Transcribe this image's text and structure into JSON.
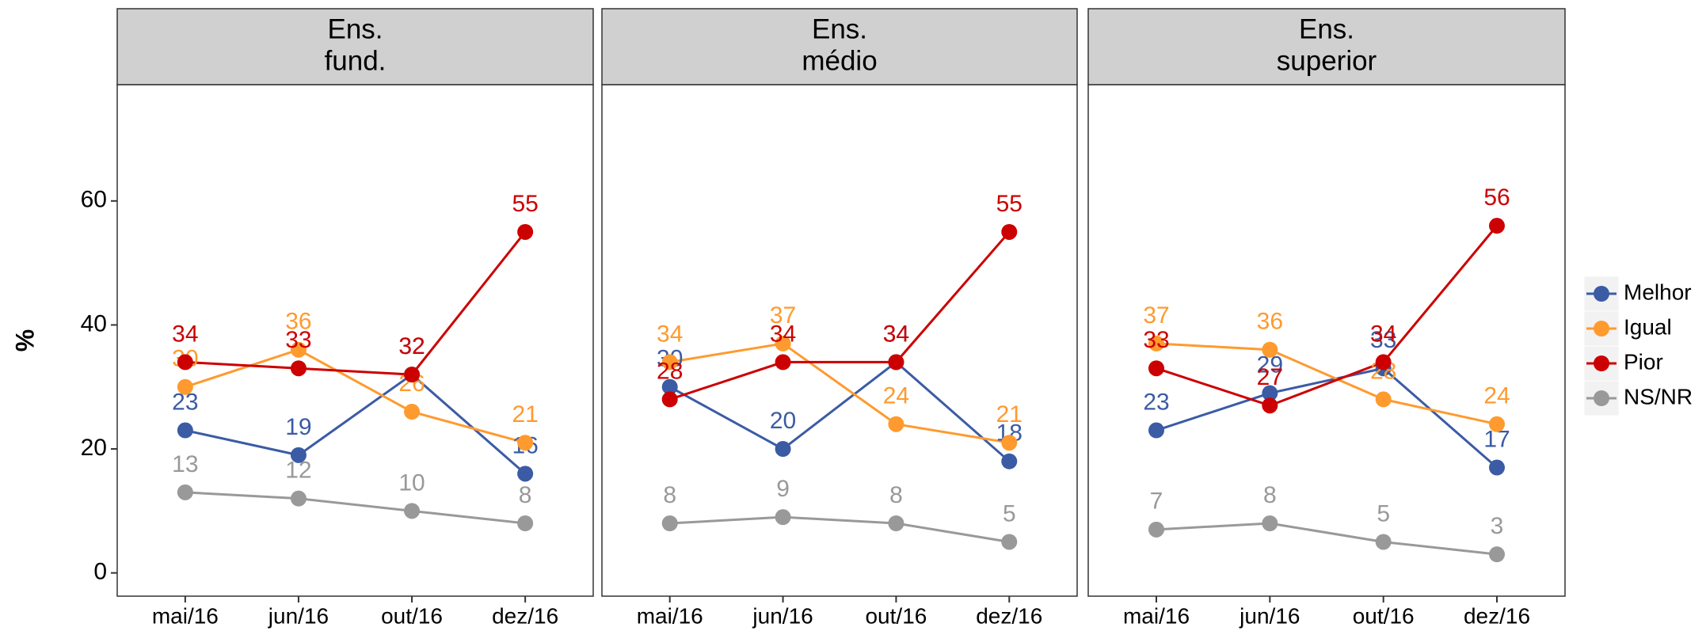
{
  "chart_data": [
    {
      "type": "line",
      "title": [
        "Ens.",
        "fund."
      ],
      "y_label": "%",
      "ylim": [
        -3.75,
        78.75
      ],
      "yticks": [
        0,
        20,
        40,
        60
      ],
      "legend": "right",
      "categories": [
        "mai/16",
        "jun/16",
        "out/16",
        "dez/16"
      ],
      "series": [
        {
          "name": "Melhor",
          "color": "#3b5ba5",
          "values": [
            23,
            19,
            32,
            16
          ]
        },
        {
          "name": "Igual",
          "color": "#ff9a2e",
          "values": [
            30,
            36,
            26,
            21
          ]
        },
        {
          "name": "Pior",
          "color": "#cc0000",
          "values": [
            34,
            33,
            32,
            55
          ]
        },
        {
          "name": "NS/NR",
          "color": "#999999",
          "values": [
            13,
            12,
            10,
            8
          ]
        }
      ]
    },
    {
      "type": "line",
      "title": [
        "Ens.",
        "médio"
      ],
      "categories": [
        "mai/16",
        "jun/16",
        "out/16",
        "dez/16"
      ],
      "series": [
        {
          "name": "Melhor",
          "color": "#3b5ba5",
          "values": [
            30,
            20,
            34,
            18
          ]
        },
        {
          "name": "Igual",
          "color": "#ff9a2e",
          "values": [
            34,
            37,
            24,
            21
          ]
        },
        {
          "name": "Pior",
          "color": "#cc0000",
          "values": [
            28,
            34,
            34,
            55
          ]
        },
        {
          "name": "NS/NR",
          "color": "#999999",
          "values": [
            8,
            9,
            8,
            5
          ]
        }
      ]
    },
    {
      "type": "line",
      "title": [
        "Ens.",
        "superior"
      ],
      "categories": [
        "mai/16",
        "jun/16",
        "out/16",
        "dez/16"
      ],
      "series": [
        {
          "name": "Melhor",
          "color": "#3b5ba5",
          "values": [
            23,
            29,
            33,
            17
          ]
        },
        {
          "name": "Igual",
          "color": "#ff9a2e",
          "values": [
            37,
            36,
            28,
            24
          ]
        },
        {
          "name": "Pior",
          "color": "#cc0000",
          "values": [
            33,
            27,
            34,
            56
          ]
        },
        {
          "name": "NS/NR",
          "color": "#999999",
          "values": [
            7,
            8,
            5,
            3
          ]
        }
      ]
    }
  ]
}
